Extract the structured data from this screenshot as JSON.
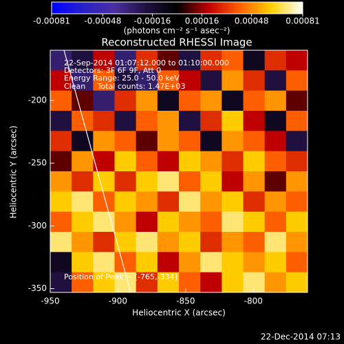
{
  "chart_data": {
    "type": "heatmap",
    "title": "Reconstructed RHESSI Image",
    "xlabel": "Heliocentric X (arcsec)",
    "ylabel": "Heliocentric Y (arcsec)",
    "xlim": [
      -950,
      -760
    ],
    "ylim": [
      -353,
      -160
    ],
    "xticks": [
      -950,
      -900,
      -850,
      -800
    ],
    "yticks": [
      -350,
      -300,
      -250,
      -200
    ],
    "colorbar": {
      "lim": [
        -0.00081,
        0.00081
      ],
      "ticks": [
        -0.00081,
        -0.00048,
        -0.00016,
        0.00016,
        0.00048,
        0.00081
      ],
      "label": "(photons cm⁻² s⁻¹ asec⁻²)"
    },
    "colormap": [
      "#0000ff",
      "#2a20c8",
      "#4a30a0",
      "#201040",
      "#000000",
      "#c00000",
      "#ff6000",
      "#ffd000",
      "#ffffff"
    ],
    "annotations": [
      "22-Sep-2014 01:07:12.000 to 01:10:00.000",
      "Detectors: 3F 6F 9F, Att 0",
      "Energy Range: 25.0 - 50.0 keV",
      "Clean     Total counts: 1.47E+03"
    ],
    "peak_label": "Position of Peak = [-765,-334]",
    "timestamp": "22-Dec-2014 07:13",
    "z": [
      [
        -0.0003,
        -0.0002,
        0.0002,
        -0.0003,
        0.0003,
        0.0001,
        -0.0002,
        0.0003,
        0.0004,
        -0.0001,
        0.0003,
        0.0002
      ],
      [
        0.0002,
        -0.0003,
        0.0004,
        -0.0002,
        -0.0003,
        0.0004,
        0.0002,
        -0.0002,
        0.0005,
        0.0003,
        -0.0002,
        0.0004
      ],
      [
        0.0004,
        0.0001,
        -0.0003,
        0.0003,
        0.0005,
        -0.0001,
        0.0004,
        0.0005,
        -0.0001,
        0.0004,
        0.0005,
        0.0001
      ],
      [
        -0.0002,
        0.0004,
        0.0003,
        -0.0002,
        0.0004,
        0.0005,
        -0.0002,
        0.0003,
        0.0006,
        0.0002,
        -0.0001,
        0.0004
      ],
      [
        0.0003,
        -0.0001,
        0.0005,
        0.0004,
        0.0001,
        0.0005,
        0.0004,
        -0.0001,
        0.0005,
        0.0004,
        0.0002,
        -0.0002
      ],
      [
        0.0001,
        0.0005,
        0.0002,
        0.0006,
        0.0004,
        0.0002,
        0.0006,
        0.0005,
        0.0003,
        0.0006,
        0.0004,
        0.0003
      ],
      [
        0.0005,
        0.0003,
        0.0006,
        0.0003,
        0.0006,
        0.0007,
        0.0004,
        0.0006,
        0.0002,
        0.0005,
        0.0001,
        0.0005
      ],
      [
        0.0006,
        0.0007,
        0.0004,
        0.0006,
        0.0005,
        0.0003,
        0.0007,
        0.0005,
        0.0006,
        0.0003,
        0.0005,
        0.0004
      ],
      [
        0.0004,
        0.0006,
        0.0007,
        0.0005,
        0.0002,
        0.0006,
        0.0005,
        0.0004,
        0.0007,
        0.0006,
        0.0004,
        0.0006
      ],
      [
        0.0007,
        0.0005,
        0.0003,
        0.0006,
        0.0007,
        0.0005,
        0.0006,
        0.0003,
        0.0005,
        0.0004,
        0.0007,
        0.0005
      ],
      [
        -0.0001,
        0.0006,
        0.0007,
        0.0004,
        0.0006,
        0.0002,
        0.0005,
        0.0007,
        0.0006,
        0.0005,
        0.0006,
        0.0004
      ],
      [
        -0.0002,
        0.0004,
        0.0006,
        0.0007,
        0.0003,
        0.0006,
        0.0004,
        0.0002,
        0.0006,
        0.0007,
        0.0005,
        0.0006
      ]
    ]
  }
}
